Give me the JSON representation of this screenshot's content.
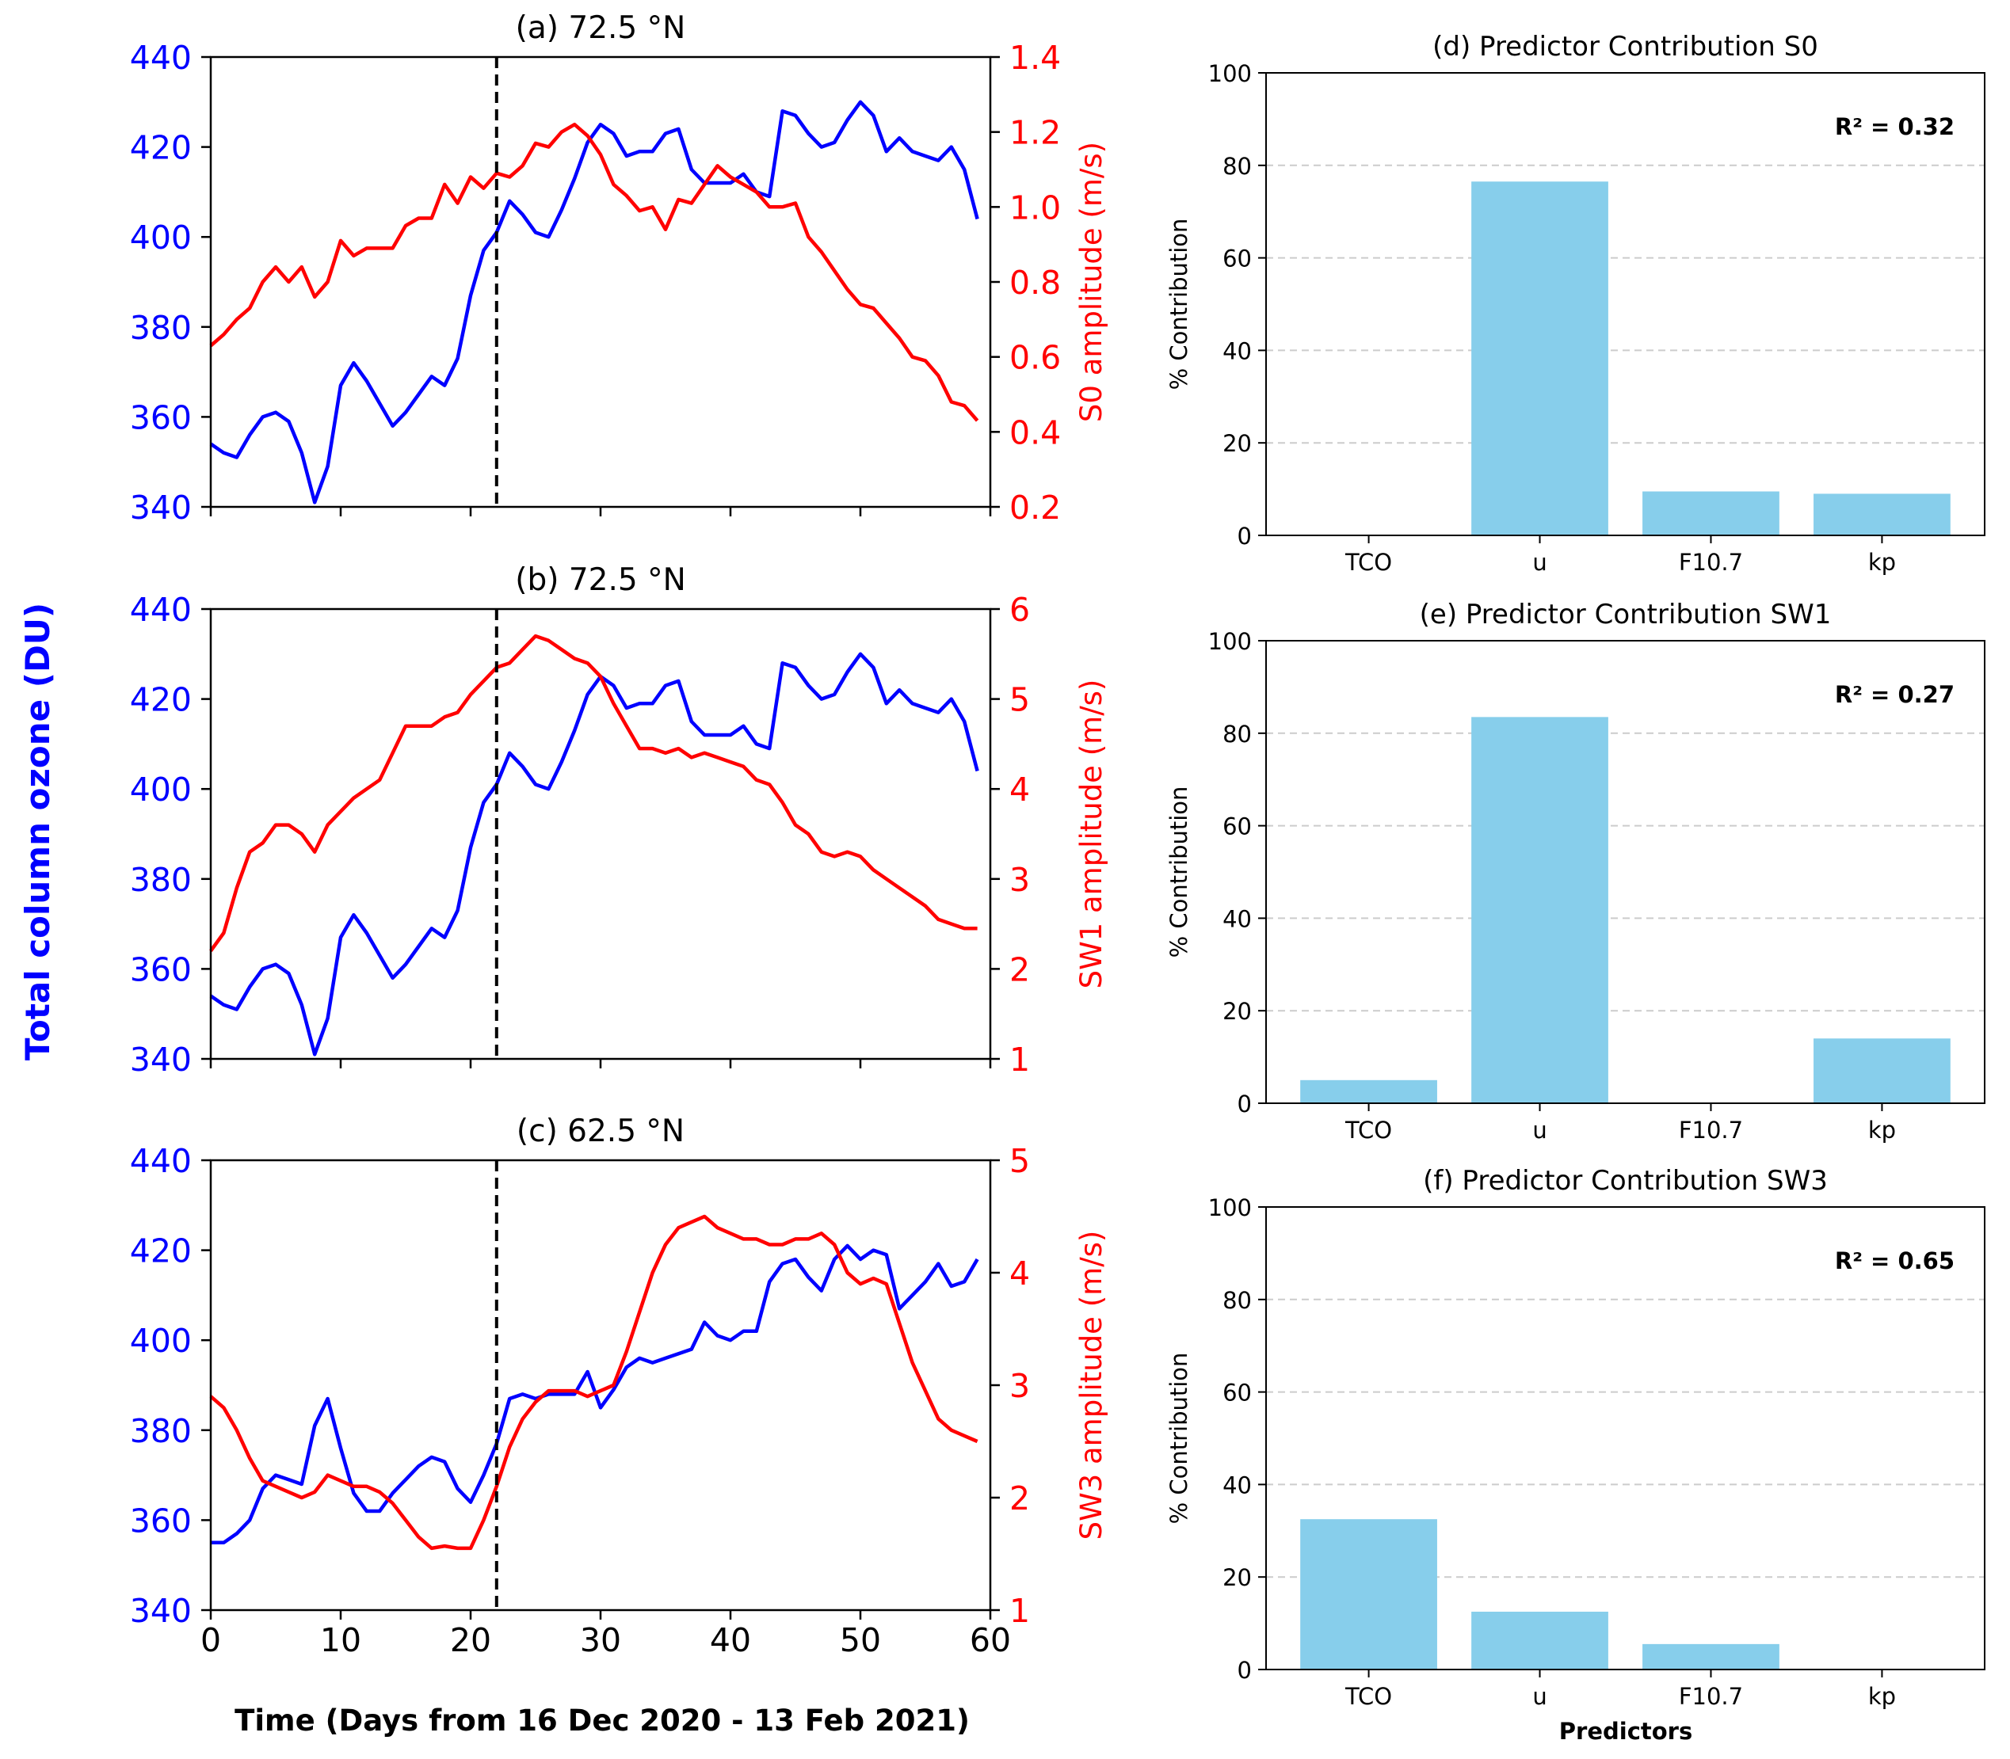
{
  "figure": {
    "shared_left_ylabel": "Total column ozone (DU)",
    "shared_xlabel": "Time (Days from 16 Dec 2020 - 13 Feb 2021)",
    "shared_bar_xlabel": "Predictors"
  },
  "colors": {
    "tco": "#0000ff",
    "amplitude": "#ff0000",
    "bar": "#87ceeb",
    "event_line": "#000000",
    "grid": "#cccccc"
  },
  "chart_data": [
    {
      "type": "line",
      "title": "(a) 72.5 °N",
      "xlim": [
        0,
        60
      ],
      "xticks": [
        "0",
        "10",
        "20",
        "30",
        "40",
        "50",
        "60"
      ],
      "show_xticklabels": false,
      "ylabel_left": "",
      "ylim_left": [
        340,
        440
      ],
      "yticks_left": [
        "340",
        "360",
        "380",
        "400",
        "420",
        "440"
      ],
      "ylabel_right": "S0 amplitude (m/s)",
      "ylim_right": [
        0.2,
        1.4
      ],
      "yticks_right": [
        "0.2",
        "0.4",
        "0.6",
        "0.8",
        "1.0",
        "1.2",
        "1.4"
      ],
      "event_day": 22,
      "series": [
        {
          "axis": "left",
          "color": "#0000ff",
          "x": [
            0,
            1,
            2,
            3,
            4,
            5,
            6,
            7,
            8,
            9,
            10,
            11,
            12,
            13,
            14,
            15,
            16,
            17,
            18,
            19,
            20,
            21,
            22,
            23,
            24,
            25,
            26,
            27,
            28,
            29,
            30,
            31,
            32,
            33,
            34,
            35,
            36,
            37,
            38,
            39,
            40,
            41,
            42,
            43,
            44,
            45,
            46,
            47,
            48,
            49,
            50,
            51,
            52,
            53,
            54,
            55,
            56,
            57,
            58,
            59
          ],
          "y": [
            354,
            352,
            351,
            356,
            360,
            361,
            359,
            352,
            341,
            349,
            367,
            372,
            368,
            363,
            358,
            361,
            365,
            369,
            367,
            373,
            387,
            397,
            401,
            408,
            405,
            401,
            400,
            406,
            413,
            421,
            425,
            423,
            418,
            419,
            419,
            423,
            424,
            415,
            412,
            412,
            412,
            414,
            410,
            409,
            428,
            427,
            423,
            420,
            421,
            426,
            430,
            427,
            419,
            422,
            419,
            418,
            417,
            420,
            415,
            404
          ]
        },
        {
          "axis": "right",
          "color": "#ff0000",
          "x": [
            0,
            1,
            2,
            3,
            4,
            5,
            6,
            7,
            8,
            9,
            10,
            11,
            12,
            13,
            14,
            15,
            16,
            17,
            18,
            19,
            20,
            21,
            22,
            23,
            24,
            25,
            26,
            27,
            28,
            29,
            30,
            31,
            32,
            33,
            34,
            35,
            36,
            37,
            38,
            39,
            40,
            41,
            42,
            43,
            44,
            45,
            46,
            47,
            48,
            49,
            50,
            51,
            52,
            53,
            54,
            55,
            56,
            57,
            58,
            59
          ],
          "y": [
            0.63,
            0.66,
            0.7,
            0.73,
            0.8,
            0.84,
            0.8,
            0.84,
            0.76,
            0.8,
            0.91,
            0.87,
            0.89,
            0.89,
            0.89,
            0.95,
            0.97,
            0.97,
            1.06,
            1.01,
            1.08,
            1.05,
            1.09,
            1.08,
            1.11,
            1.17,
            1.16,
            1.2,
            1.22,
            1.19,
            1.14,
            1.06,
            1.03,
            0.99,
            1.0,
            0.94,
            1.02,
            1.01,
            1.06,
            1.11,
            1.08,
            1.06,
            1.04,
            1.0,
            1.0,
            1.01,
            0.92,
            0.88,
            0.83,
            0.78,
            0.74,
            0.73,
            0.69,
            0.65,
            0.6,
            0.59,
            0.55,
            0.48,
            0.47,
            0.43
          ]
        }
      ]
    },
    {
      "type": "line",
      "title": "(b) 72.5 °N",
      "xlim": [
        0,
        60
      ],
      "xticks": [
        "0",
        "10",
        "20",
        "30",
        "40",
        "50",
        "60"
      ],
      "show_xticklabels": false,
      "ylabel_left": "",
      "ylim_left": [
        340,
        440
      ],
      "yticks_left": [
        "340",
        "360",
        "380",
        "400",
        "420",
        "440"
      ],
      "ylabel_right": "SW1 amplitude (m/s)",
      "ylim_right": [
        1,
        6
      ],
      "yticks_right": [
        "1",
        "2",
        "3",
        "4",
        "5",
        "6"
      ],
      "event_day": 22,
      "series": [
        {
          "axis": "left",
          "color": "#0000ff",
          "x": [
            0,
            1,
            2,
            3,
            4,
            5,
            6,
            7,
            8,
            9,
            10,
            11,
            12,
            13,
            14,
            15,
            16,
            17,
            18,
            19,
            20,
            21,
            22,
            23,
            24,
            25,
            26,
            27,
            28,
            29,
            30,
            31,
            32,
            33,
            34,
            35,
            36,
            37,
            38,
            39,
            40,
            41,
            42,
            43,
            44,
            45,
            46,
            47,
            48,
            49,
            50,
            51,
            52,
            53,
            54,
            55,
            56,
            57,
            58,
            59
          ],
          "y": [
            354,
            352,
            351,
            356,
            360,
            361,
            359,
            352,
            341,
            349,
            367,
            372,
            368,
            363,
            358,
            361,
            365,
            369,
            367,
            373,
            387,
            397,
            401,
            408,
            405,
            401,
            400,
            406,
            413,
            421,
            425,
            423,
            418,
            419,
            419,
            423,
            424,
            415,
            412,
            412,
            412,
            414,
            410,
            409,
            428,
            427,
            423,
            420,
            421,
            426,
            430,
            427,
            419,
            422,
            419,
            418,
            417,
            420,
            415,
            404
          ]
        },
        {
          "axis": "right",
          "color": "#ff0000",
          "x": [
            0,
            1,
            2,
            3,
            4,
            5,
            6,
            7,
            8,
            9,
            10,
            11,
            12,
            13,
            14,
            15,
            16,
            17,
            18,
            19,
            20,
            21,
            22,
            23,
            24,
            25,
            26,
            27,
            28,
            29,
            30,
            31,
            32,
            33,
            34,
            35,
            36,
            37,
            38,
            39,
            40,
            41,
            42,
            43,
            44,
            45,
            46,
            47,
            48,
            49,
            50,
            51,
            52,
            53,
            54,
            55,
            56,
            57,
            58,
            59
          ],
          "y": [
            2.2,
            2.4,
            2.9,
            3.3,
            3.4,
            3.6,
            3.6,
            3.5,
            3.3,
            3.6,
            3.75,
            3.9,
            4.0,
            4.1,
            4.4,
            4.7,
            4.7,
            4.7,
            4.8,
            4.85,
            5.05,
            5.2,
            5.35,
            5.4,
            5.55,
            5.7,
            5.65,
            5.55,
            5.45,
            5.4,
            5.25,
            4.95,
            4.7,
            4.45,
            4.45,
            4.4,
            4.45,
            4.35,
            4.4,
            4.35,
            4.3,
            4.25,
            4.1,
            4.05,
            3.85,
            3.6,
            3.5,
            3.3,
            3.25,
            3.3,
            3.25,
            3.1,
            3.0,
            2.9,
            2.8,
            2.7,
            2.55,
            2.5,
            2.45,
            2.45
          ]
        }
      ]
    },
    {
      "type": "line",
      "title": "(c) 62.5 °N",
      "xlim": [
        0,
        60
      ],
      "xticks": [
        "0",
        "10",
        "20",
        "30",
        "40",
        "50",
        "60"
      ],
      "show_xticklabels": true,
      "ylabel_left": "",
      "ylim_left": [
        340,
        440
      ],
      "yticks_left": [
        "340",
        "360",
        "380",
        "400",
        "420",
        "440"
      ],
      "ylabel_right": "SW3 amplitude (m/s)",
      "ylim_right": [
        1,
        5
      ],
      "yticks_right": [
        "1",
        "2",
        "3",
        "4",
        "5"
      ],
      "event_day": 22,
      "series": [
        {
          "axis": "left",
          "color": "#0000ff",
          "x": [
            0,
            1,
            2,
            3,
            4,
            5,
            6,
            7,
            8,
            9,
            10,
            11,
            12,
            13,
            14,
            15,
            16,
            17,
            18,
            19,
            20,
            21,
            22,
            23,
            24,
            25,
            26,
            27,
            28,
            29,
            30,
            31,
            32,
            33,
            34,
            35,
            36,
            37,
            38,
            39,
            40,
            41,
            42,
            43,
            44,
            45,
            46,
            47,
            48,
            49,
            50,
            51,
            52,
            53,
            54,
            55,
            56,
            57,
            58,
            59
          ],
          "y": [
            355,
            355,
            357,
            360,
            367,
            370,
            369,
            368,
            381,
            387,
            376,
            366,
            362,
            362,
            366,
            369,
            372,
            374,
            373,
            367,
            364,
            370,
            377,
            387,
            388,
            387,
            388,
            388,
            388,
            393,
            385,
            389,
            394,
            396,
            395,
            396,
            397,
            398,
            404,
            401,
            400,
            402,
            402,
            413,
            417,
            418,
            414,
            411,
            418,
            421,
            418,
            420,
            419,
            407,
            410,
            413,
            417,
            412,
            413,
            418
          ]
        },
        {
          "axis": "right",
          "color": "#ff0000",
          "x": [
            0,
            1,
            2,
            3,
            4,
            5,
            6,
            7,
            8,
            9,
            10,
            11,
            12,
            13,
            14,
            15,
            16,
            17,
            18,
            19,
            20,
            21,
            22,
            23,
            24,
            25,
            26,
            27,
            28,
            29,
            30,
            31,
            32,
            33,
            34,
            35,
            36,
            37,
            38,
            39,
            40,
            41,
            42,
            43,
            44,
            45,
            46,
            47,
            48,
            49,
            50,
            51,
            52,
            53,
            54,
            55,
            56,
            57,
            58,
            59
          ],
          "y": [
            2.9,
            2.8,
            2.6,
            2.35,
            2.15,
            2.1,
            2.05,
            2.0,
            2.05,
            2.2,
            2.15,
            2.1,
            2.1,
            2.05,
            1.95,
            1.8,
            1.65,
            1.55,
            1.57,
            1.55,
            1.55,
            1.8,
            2.1,
            2.45,
            2.7,
            2.85,
            2.95,
            2.95,
            2.95,
            2.9,
            2.95,
            3.0,
            3.3,
            3.65,
            4.0,
            4.25,
            4.4,
            4.45,
            4.5,
            4.4,
            4.35,
            4.3,
            4.3,
            4.25,
            4.25,
            4.3,
            4.3,
            4.35,
            4.25,
            4.0,
            3.9,
            3.95,
            3.9,
            3.55,
            3.2,
            2.95,
            2.7,
            2.6,
            2.55,
            2.5
          ]
        }
      ]
    },
    {
      "type": "bar",
      "title": "(d) Predictor Contribution S0",
      "categories": [
        "TCO",
        "u",
        "F10.7",
        "kp"
      ],
      "values": [
        0,
        76.5,
        9.5,
        9
      ],
      "ylabel": "% Contribution",
      "ylim": [
        0,
        100
      ],
      "yticks": [
        "0",
        "20",
        "40",
        "60",
        "80",
        "100"
      ],
      "annotation": "R² = 0.32",
      "grid": "y-dashed"
    },
    {
      "type": "bar",
      "title": "(e) Predictor Contribution SW1",
      "categories": [
        "TCO",
        "u",
        "F10.7",
        "kp"
      ],
      "values": [
        5,
        83.5,
        0,
        14
      ],
      "ylabel": "% Contribution",
      "ylim": [
        0,
        100
      ],
      "yticks": [
        "0",
        "20",
        "40",
        "60",
        "80",
        "100"
      ],
      "annotation": "R² = 0.27",
      "grid": "y-dashed"
    },
    {
      "type": "bar",
      "title": "(f) Predictor Contribution SW3",
      "categories": [
        "TCO",
        "u",
        "F10.7",
        "kp"
      ],
      "values": [
        32.5,
        12.5,
        5.5,
        0
      ],
      "ylabel": "% Contribution",
      "ylim": [
        0,
        100
      ],
      "yticks": [
        "0",
        "20",
        "40",
        "60",
        "80",
        "100"
      ],
      "annotation": "R² = 0.65",
      "grid": "y-dashed"
    }
  ]
}
